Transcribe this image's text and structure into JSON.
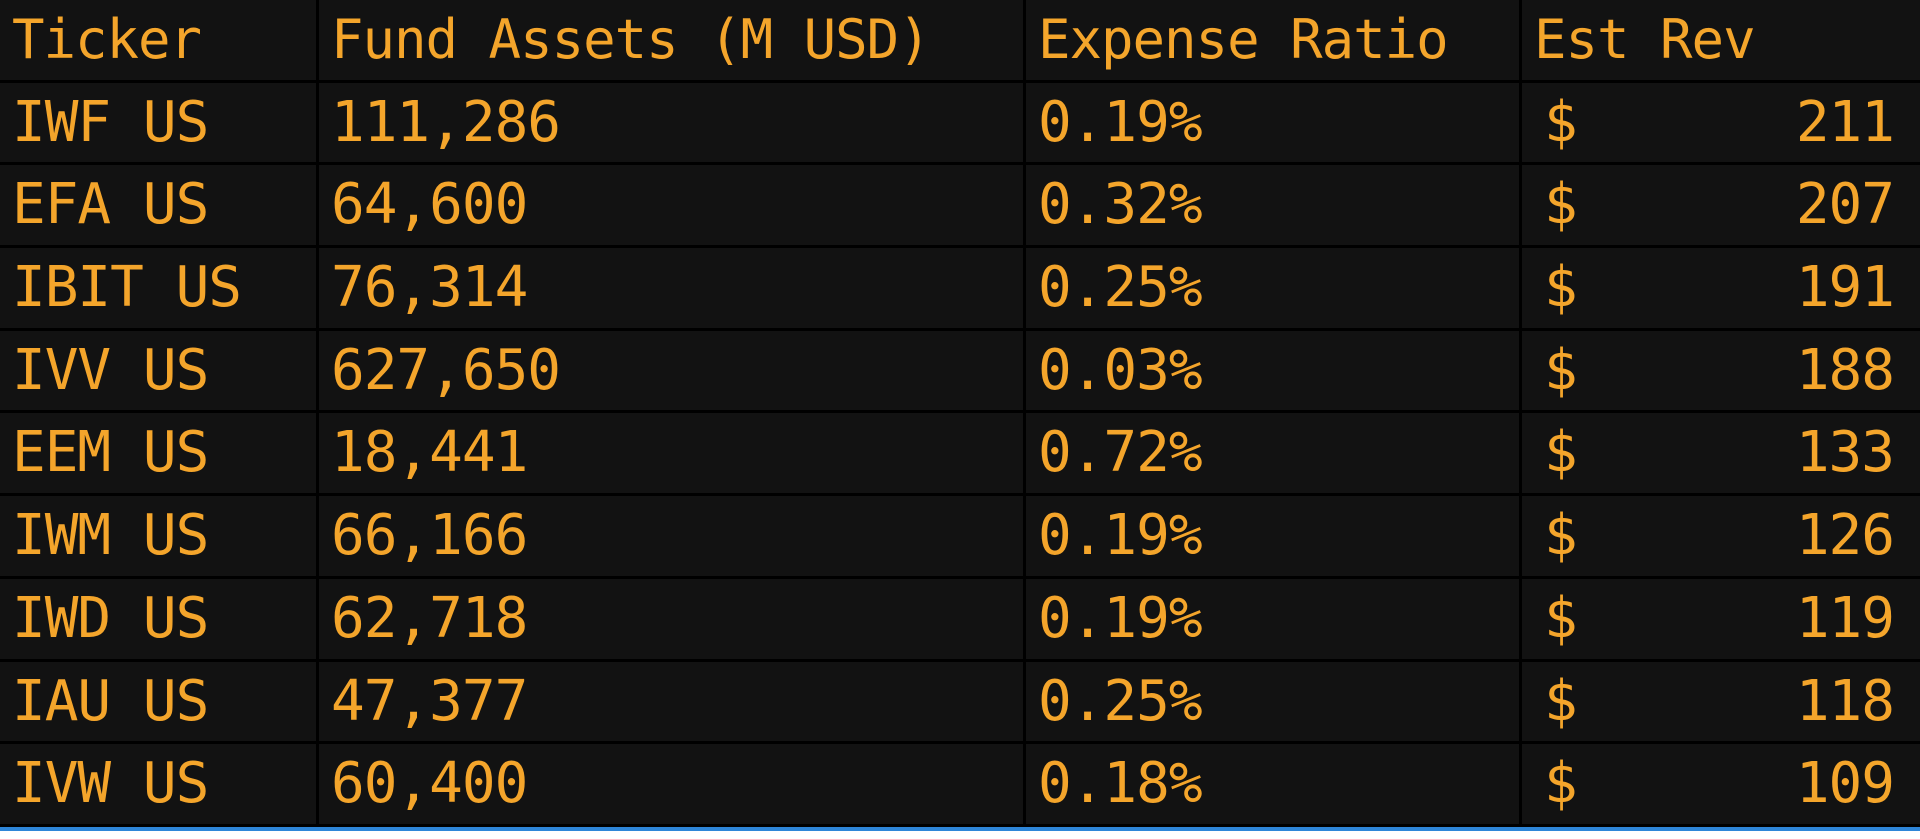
{
  "table": {
    "headers": {
      "ticker": "Ticker",
      "assets": "Fund Assets (M USD)",
      "expense": "Expense Ratio",
      "rev": "Est Rev"
    },
    "rows": [
      {
        "ticker": "IWF US",
        "assets": "111,286",
        "expense": "0.19%",
        "currency": "$",
        "rev": "211"
      },
      {
        "ticker": "EFA US",
        "assets": "64,600",
        "expense": "0.32%",
        "currency": "$",
        "rev": "207"
      },
      {
        "ticker": "IBIT US",
        "assets": "76,314",
        "expense": "0.25%",
        "currency": "$",
        "rev": "191"
      },
      {
        "ticker": "IVV US",
        "assets": "627,650",
        "expense": "0.03%",
        "currency": "$",
        "rev": "188"
      },
      {
        "ticker": "EEM US",
        "assets": "18,441",
        "expense": "0.72%",
        "currency": "$",
        "rev": "133"
      },
      {
        "ticker": "IWM US",
        "assets": "66,166",
        "expense": "0.19%",
        "currency": "$",
        "rev": "126"
      },
      {
        "ticker": "IWD US",
        "assets": "62,718",
        "expense": "0.19%",
        "currency": "$",
        "rev": "119"
      },
      {
        "ticker": "IAU US",
        "assets": "47,377",
        "expense": "0.25%",
        "currency": "$",
        "rev": "118"
      },
      {
        "ticker": "IVW US",
        "assets": "60,400",
        "expense": "0.18%",
        "currency": "$",
        "rev": "109"
      }
    ]
  },
  "colors": {
    "background": "#121212",
    "text": "#f4a52b",
    "grid_line": "#000000",
    "bottom_rule": "#2e86d8"
  }
}
